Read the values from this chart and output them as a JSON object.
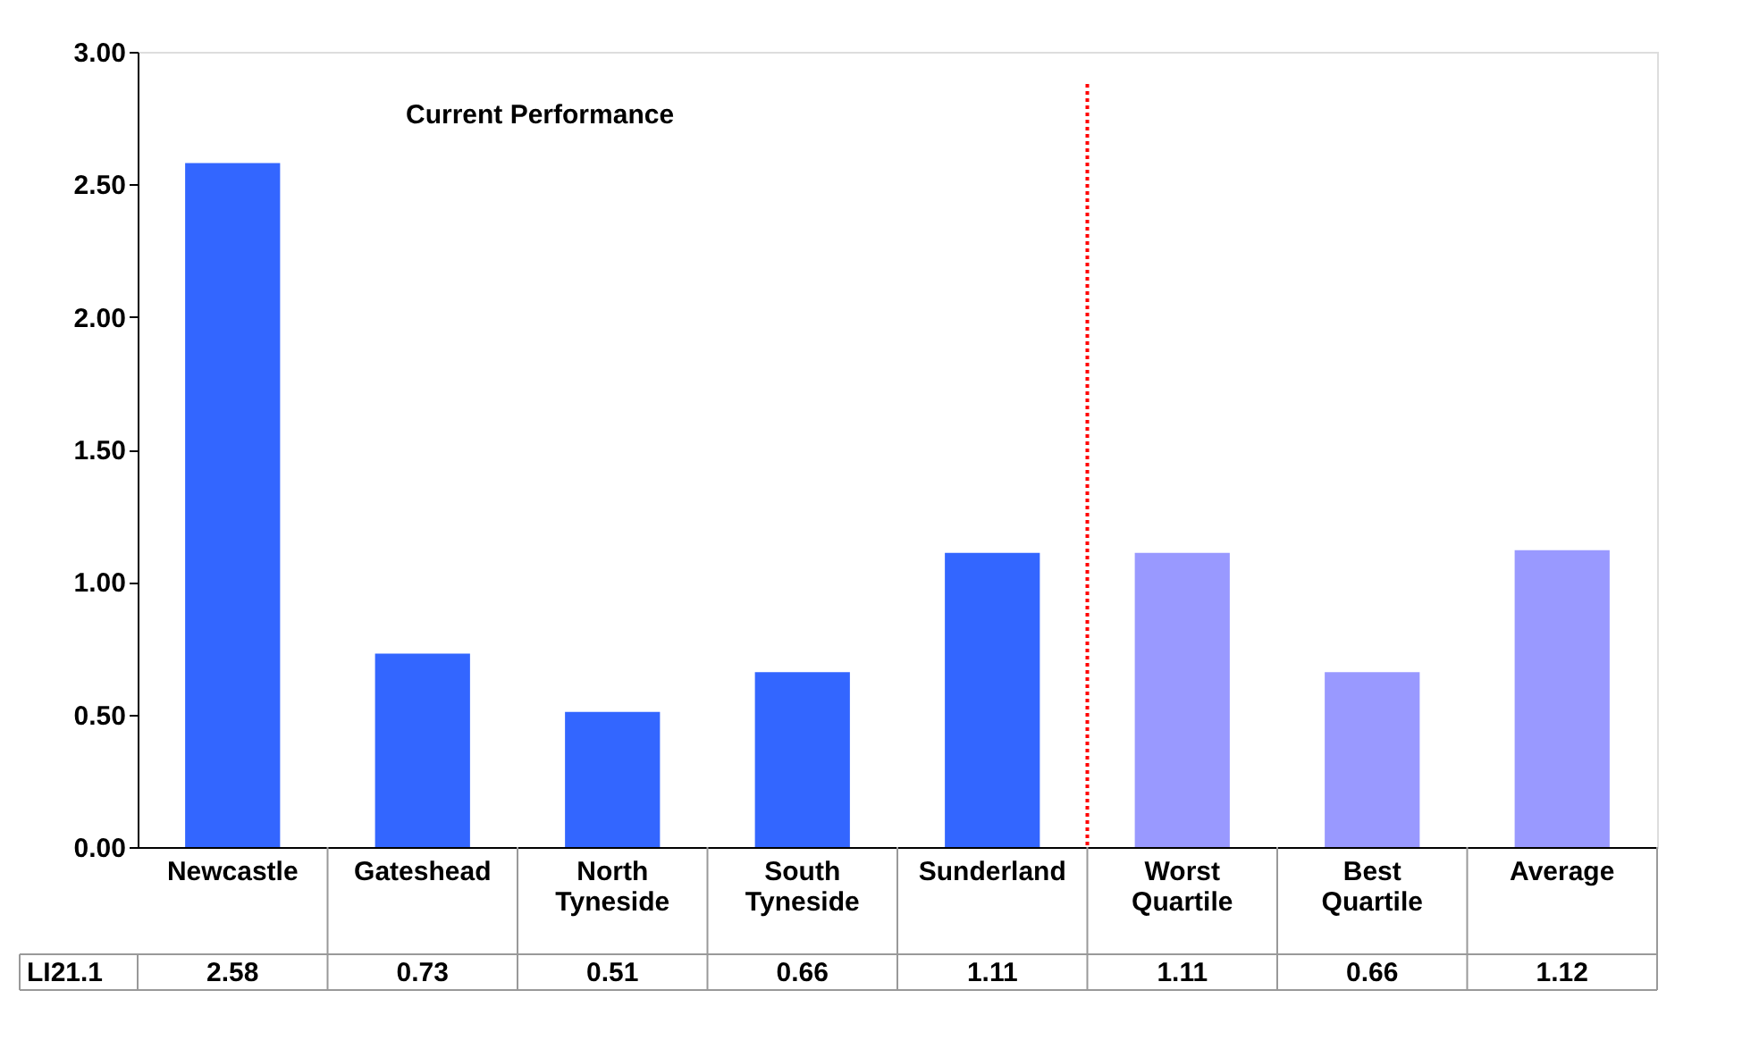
{
  "chart_data": {
    "type": "bar",
    "categories": [
      "Newcastle",
      "Gateshead",
      "North Tyneside",
      "South Tyneside",
      "Sunderland",
      "Worst Quartile",
      "Best Quartile",
      "Average"
    ],
    "series": [
      {
        "name": "LI21.1",
        "colors": [
          "#3366ff",
          "#3366ff",
          "#3366ff",
          "#3366ff",
          "#3366ff",
          "#9999ff",
          "#9999ff",
          "#9999ff"
        ],
        "values": [
          2.58,
          0.73,
          0.51,
          0.66,
          1.11,
          1.11,
          0.66,
          1.12
        ]
      }
    ],
    "ylim": [
      0,
      3
    ],
    "yticks": [
      {
        "value": 0,
        "label": "0.00"
      },
      {
        "value": 0.5,
        "label": "0.50"
      },
      {
        "value": 1,
        "label": "1.00"
      },
      {
        "value": 1.5,
        "label": "1.50"
      },
      {
        "value": 2,
        "label": "2.00"
      },
      {
        "value": 2.5,
        "label": "2.50"
      },
      {
        "value": 3,
        "label": "3.00"
      }
    ],
    "annotations": [
      "Current Performance"
    ],
    "ref_lines": [
      {
        "axis": "x",
        "value": "Worst Quartile",
        "color": "#ff0000",
        "line_style": "dotted"
      }
    ],
    "data_labels": true,
    "grid": false
  }
}
